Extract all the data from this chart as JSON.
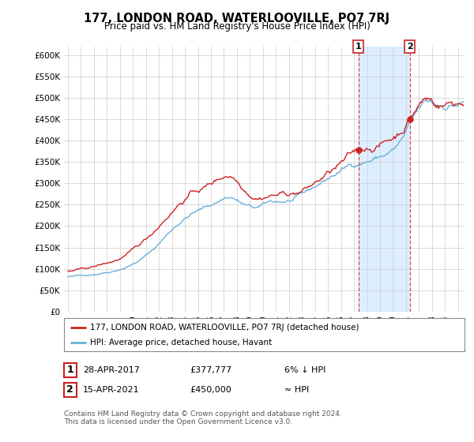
{
  "title": "177, LONDON ROAD, WATERLOOVILLE, PO7 7RJ",
  "subtitle": "Price paid vs. HM Land Registry's House Price Index (HPI)",
  "legend_line1": "177, LONDON ROAD, WATERLOOVILLE, PO7 7RJ (detached house)",
  "legend_line2": "HPI: Average price, detached house, Havant",
  "annotation1_date": "28-APR-2017",
  "annotation1_price": "£377,777",
  "annotation1_hpi": "6% ↓ HPI",
  "annotation2_date": "15-APR-2021",
  "annotation2_price": "£450,000",
  "annotation2_hpi": "≈ HPI",
  "footer": "Contains HM Land Registry data © Crown copyright and database right 2024.\nThis data is licensed under the Open Government Licence v3.0.",
  "hpi_color": "#6ab0d8",
  "price_color": "#cc2222",
  "annotation_color": "#cc2222",
  "shade_color": "#ddeeff",
  "ylim": [
    0,
    620000
  ],
  "yticks": [
    0,
    50000,
    100000,
    150000,
    200000,
    250000,
    300000,
    350000,
    400000,
    450000,
    500000,
    550000,
    600000
  ],
  "ytick_labels": [
    "£0",
    "£50K",
    "£100K",
    "£150K",
    "£200K",
    "£250K",
    "£300K",
    "£350K",
    "£400K",
    "£450K",
    "£500K",
    "£550K",
    "£600K"
  ],
  "sale1_year": 2017.33,
  "sale1_price": 377777,
  "sale2_year": 2021.29,
  "sale2_price": 450000,
  "bg_color": "#ffffff",
  "grid_color": "#cccccc",
  "plot_bg": "#ffffff"
}
